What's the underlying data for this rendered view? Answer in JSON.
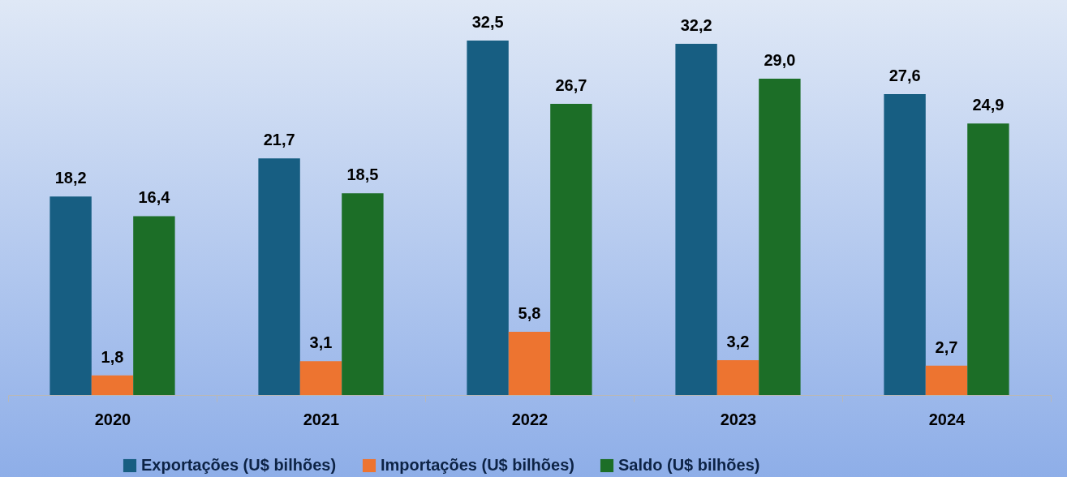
{
  "chart_data": {
    "type": "bar",
    "categories": [
      "2020",
      "2021",
      "2022",
      "2023",
      "2024"
    ],
    "series": [
      {
        "name": "Exportações (U$ bilhões)",
        "color": "#175e82",
        "values": [
          18.2,
          21.7,
          32.5,
          32.2,
          27.6
        ],
        "value_labels": [
          "18,2",
          "21,7",
          "32,5",
          "32,2",
          "27,6"
        ]
      },
      {
        "name": "Importações (U$ bilhões)",
        "color": "#ed7430",
        "values": [
          1.8,
          3.1,
          5.8,
          3.2,
          2.7
        ],
        "value_labels": [
          "1,8",
          "3,1",
          "5,8",
          "3,2",
          "2,7"
        ]
      },
      {
        "name": "Saldo (U$ bilhões)",
        "color": "#1c6e27",
        "values": [
          16.4,
          18.5,
          26.7,
          29.0,
          24.9
        ],
        "value_labels": [
          "16,4",
          "18,5",
          "26,7",
          "29,0",
          "24,9"
        ]
      }
    ],
    "legend": "bottom"
  }
}
